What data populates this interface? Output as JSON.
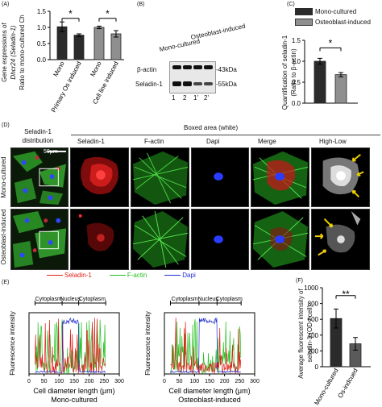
{
  "panelA": {
    "letter": "(A)",
    "ylabel_line1": "Gene expressions of",
    "ylabel_line2": "Dhcr24 (Seladin-1)",
    "ylabel_line3": "Ratio to mono-cultured Ch",
    "sig": [
      "*",
      "*"
    ],
    "bar_labels": [
      "Mono",
      "Primary Os induced",
      "Mono",
      "Cell line induced"
    ],
    "colors": {
      "black": "#2b2b2b",
      "gray": "#8f8f8f"
    }
  },
  "panelB": {
    "letter": "(B)",
    "group1": "Mono-cultured",
    "group2": "Osteoblast-induced",
    "row1": "β-actin",
    "row2": "Seladin-1",
    "kda1": "-43kDa",
    "kda2": "-55kDa",
    "lanes": [
      "1",
      "2",
      "1'",
      "2'"
    ]
  },
  "panelC": {
    "letter": "(C)",
    "legend": [
      "Mono-cultured",
      "Osteoblast-induced"
    ],
    "ylabel_line1": "Quantification of seladin-1",
    "ylabel_line2": "(Ratio to β-actin)",
    "sig": "*"
  },
  "panelD": {
    "letter": "(D)",
    "col0": "Seladin-1\ndistribution",
    "boxed_header": "Boxed area (white)",
    "cols": [
      "Seladin-1",
      "F-actin",
      "Dapi",
      "Merge",
      "High-Low"
    ],
    "scale": "50μm",
    "rows": [
      "Mono-cultured",
      "Osteoblast-induced"
    ]
  },
  "panelE": {
    "letter": "(E)",
    "legend": [
      "Seladin-1",
      "F-actin",
      "Dapi"
    ],
    "legend_colors": [
      "#e0201b",
      "#22c01e",
      "#1f2fd0"
    ],
    "regions": [
      "Cytoplasm",
      "Nucleus",
      "Cytoplasm"
    ],
    "ylabel": "Fluorescence intensity",
    "xlabel": "Cell diameter length (μm)",
    "left_title": "Mono-cultured",
    "right_title": "Osteoblast-induced"
  },
  "panelF": {
    "letter": "(F)",
    "sig": "**",
    "ylabel_line1": "Average fluorescent intensity of",
    "ylabel_line2": "seladin-1 (OD / cell)",
    "bar_labels": [
      "Mono-cultured",
      "Os-indcued"
    ]
  },
  "chart_data": [
    {
      "type": "bar",
      "categories": [
        "Mono",
        "Primary Os induced",
        "Mono",
        "Cell line induced"
      ],
      "values": [
        1.02,
        0.76,
        1.0,
        0.8
      ],
      "errors": [
        0.15,
        0.04,
        0.04,
        0.1
      ],
      "ylim": [
        0,
        1.5
      ],
      "yticks": [
        0,
        0.5,
        1.0,
        1.5
      ]
    },
    {
      "type": "bar",
      "categories": [
        "Mono-cultured",
        "Osteoblast-induced"
      ],
      "values": [
        1.0,
        0.68
      ],
      "errors": [
        0.07,
        0.05
      ],
      "ylim": [
        0,
        1.5
      ],
      "yticks": [
        0,
        0.5,
        1.0,
        1.5
      ]
    },
    {
      "type": "line",
      "x_ticks": [
        0,
        50,
        100,
        150,
        200,
        250,
        300
      ],
      "xlim": [
        0,
        300
      ],
      "series": [
        {
          "name": "Seladin-1",
          "color": "#e0201b"
        },
        {
          "name": "F-actin",
          "color": "#22c01e"
        },
        {
          "name": "Dapi",
          "color": "#1f2fd0"
        }
      ]
    },
    {
      "type": "line",
      "x_ticks": [
        0,
        50,
        100,
        150,
        200,
        250,
        300
      ],
      "xlim": [
        0,
        300
      ],
      "series": [
        {
          "name": "Seladin-1",
          "color": "#e0201b"
        },
        {
          "name": "F-actin",
          "color": "#22c01e"
        },
        {
          "name": "Dapi",
          "color": "#1f2fd0"
        }
      ]
    },
    {
      "type": "bar",
      "categories": [
        "Mono-cultured",
        "Os-indcued"
      ],
      "values": [
        610,
        290
      ],
      "errors": [
        120,
        80
      ],
      "ylim": [
        0,
        1000
      ],
      "yticks": [
        0,
        200,
        400,
        600,
        800,
        1000
      ]
    }
  ]
}
